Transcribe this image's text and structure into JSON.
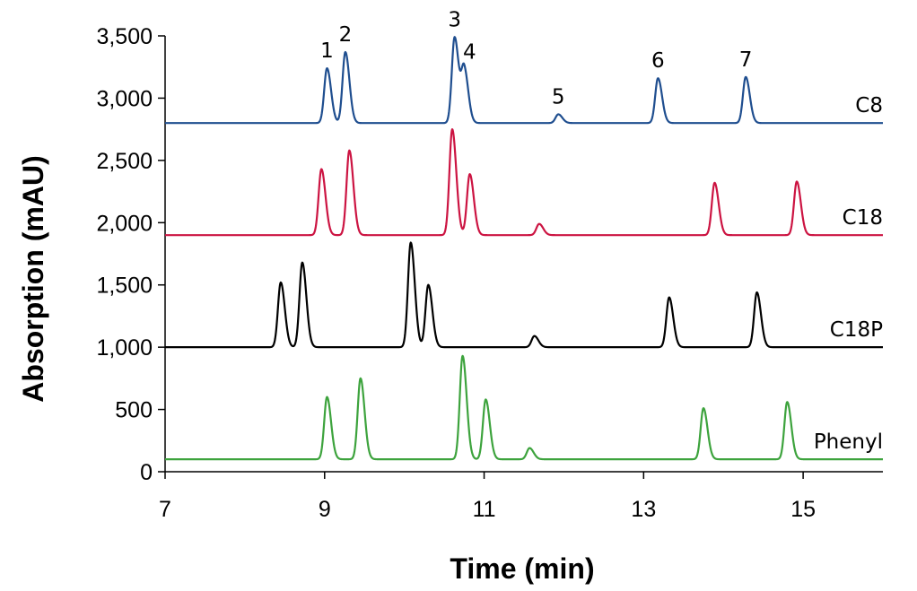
{
  "chart_data": {
    "type": "line",
    "xlabel": "Time (min)",
    "ylabel": "Absorption (mAU)",
    "xlim": [
      7,
      16
    ],
    "ylim": [
      0,
      3500
    ],
    "xticks": [
      7,
      9,
      11,
      13,
      15
    ],
    "xtick_labels": [
      "7",
      "9",
      "11",
      "13",
      "15"
    ],
    "yticks": [
      0,
      500,
      1000,
      1500,
      2000,
      2500,
      3000,
      3500
    ],
    "ytick_labels": [
      "0",
      "500",
      "1,000",
      "1,500",
      "2,000",
      "2,500",
      "3,000",
      "3,500"
    ],
    "grid": false,
    "series": [
      {
        "name": "C8",
        "color": "#1f4e8f",
        "baseline": 2800,
        "peaks": [
          {
            "t": 9.03,
            "h": 3240,
            "label": "1"
          },
          {
            "t": 9.26,
            "h": 3370,
            "label": "2"
          },
          {
            "t": 10.63,
            "h": 3490,
            "label": "3"
          },
          {
            "t": 10.75,
            "h": 3230,
            "label": "4"
          },
          {
            "t": 11.93,
            "h": 2870,
            "label": "5"
          },
          {
            "t": 13.18,
            "h": 3160,
            "label": "6"
          },
          {
            "t": 14.28,
            "h": 3170,
            "label": "7"
          }
        ]
      },
      {
        "name": "C18",
        "color": "#cc1442",
        "baseline": 1900,
        "peaks": [
          {
            "t": 8.96,
            "h": 2430
          },
          {
            "t": 9.31,
            "h": 2580
          },
          {
            "t": 10.6,
            "h": 2750
          },
          {
            "t": 10.82,
            "h": 2390
          },
          {
            "t": 11.69,
            "h": 1990
          },
          {
            "t": 13.89,
            "h": 2320
          },
          {
            "t": 14.92,
            "h": 2330
          }
        ]
      },
      {
        "name": "C18P",
        "color": "#000000",
        "baseline": 1000,
        "peaks": [
          {
            "t": 8.45,
            "h": 1520
          },
          {
            "t": 8.72,
            "h": 1680
          },
          {
            "t": 10.08,
            "h": 1840
          },
          {
            "t": 10.3,
            "h": 1500
          },
          {
            "t": 11.63,
            "h": 1090
          },
          {
            "t": 13.32,
            "h": 1400
          },
          {
            "t": 14.42,
            "h": 1440
          }
        ]
      },
      {
        "name": "Phenyl",
        "color": "#3da33d",
        "baseline": 100,
        "peaks": [
          {
            "t": 9.03,
            "h": 600
          },
          {
            "t": 9.45,
            "h": 750
          },
          {
            "t": 10.73,
            "h": 930
          },
          {
            "t": 11.02,
            "h": 580
          },
          {
            "t": 11.57,
            "h": 190
          },
          {
            "t": 13.75,
            "h": 510
          },
          {
            "t": 14.8,
            "h": 560
          }
        ]
      }
    ]
  }
}
